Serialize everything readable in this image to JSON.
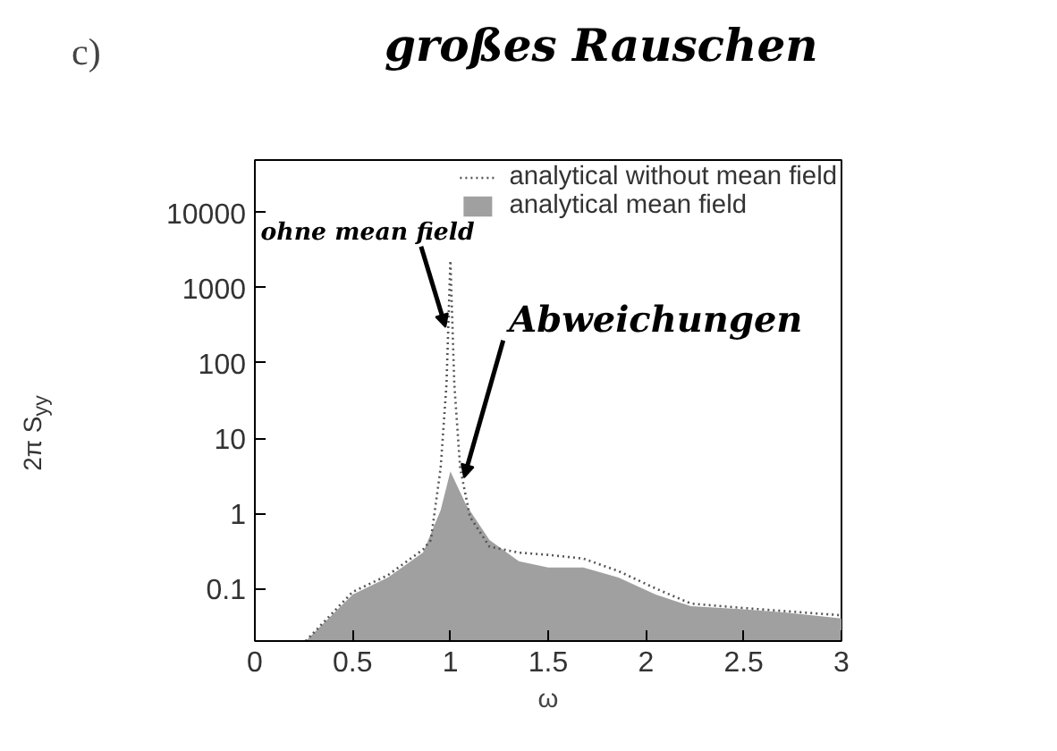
{
  "chart_data": {
    "type": "line",
    "xlabel": "ω",
    "ylabel": "2π S$_{yy}$",
    "xlim": [
      0,
      3
    ],
    "ylim": [
      0.02,
      50000
    ],
    "log": "y",
    "grid": false,
    "legend": "top right",
    "xticks": [
      0,
      0.5,
      1,
      1.5,
      2,
      2.5,
      3
    ],
    "yticks": [
      0.1,
      1,
      10,
      100,
      1000,
      10000
    ],
    "series": [
      {
        "name": "analytical without mean field",
        "line_style": "dotted",
        "color": "#555555",
        "x": [
          0.26,
          0.5,
          0.68,
          0.86,
          0.9,
          0.95,
          0.98,
          1.0,
          1.02,
          1.05,
          1.1,
          1.2,
          1.35,
          1.5,
          1.68,
          1.86,
          2.05,
          2.23,
          2.5,
          2.71,
          3.0
        ],
        "values": [
          0.02,
          0.09,
          0.15,
          0.33,
          0.44,
          4,
          52,
          2300,
          52,
          4,
          0.9,
          0.36,
          0.3,
          0.28,
          0.25,
          0.17,
          0.1,
          0.063,
          0.055,
          0.05,
          0.044
        ]
      },
      {
        "name": "analytical mean field",
        "type": "area",
        "color": "#a0a0a0",
        "x": [
          0.26,
          0.5,
          0.68,
          0.86,
          0.95,
          1.0,
          1.08,
          1.2,
          1.35,
          1.5,
          1.68,
          1.86,
          2.05,
          2.23,
          2.5,
          2.71,
          3.0
        ],
        "values": [
          0.02,
          0.083,
          0.14,
          0.3,
          1.1,
          3.6,
          1.3,
          0.44,
          0.23,
          0.19,
          0.19,
          0.14,
          0.083,
          0.058,
          0.053,
          0.048,
          0.04
        ]
      }
    ],
    "annotations": [
      "c)",
      "großes Rauschen",
      {
        "text": "ohne mean field",
        "x": 0.99,
        "y": 300
      },
      {
        "text": "Abweichungen",
        "x": 1.05,
        "y": 3
      }
    ]
  }
}
